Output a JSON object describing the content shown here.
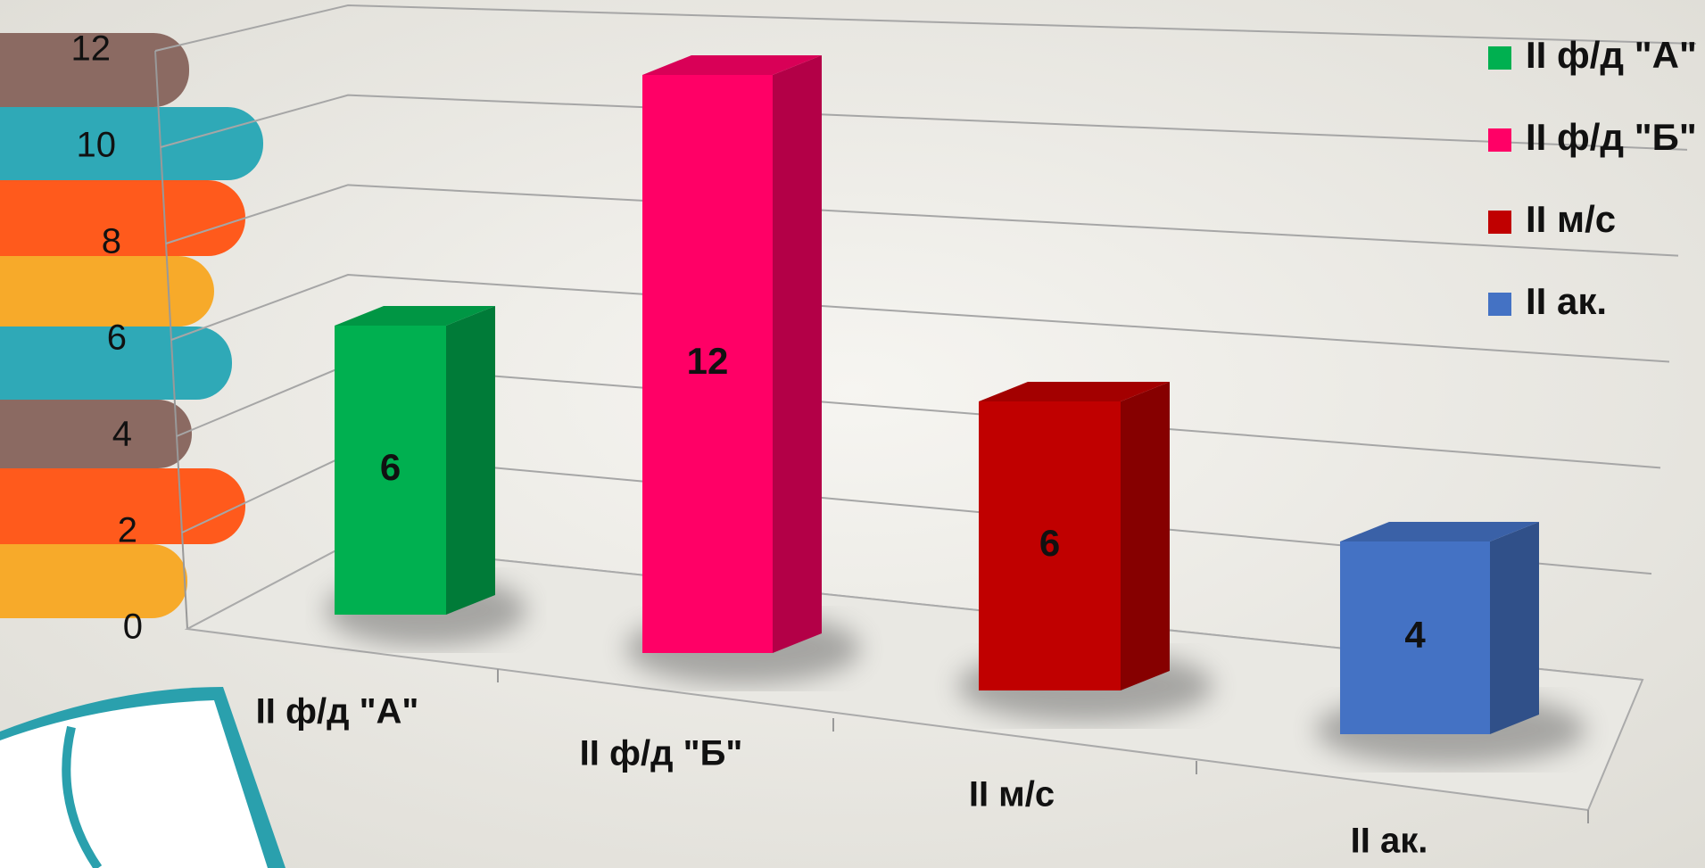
{
  "chart_data": {
    "type": "bar3d",
    "categories": [
      "II ф/д \"А\"",
      "II ф/д \"Б\"",
      "II м/с",
      "II ак."
    ],
    "values": [
      6,
      12,
      6,
      4
    ],
    "colors": [
      "#00b050",
      "#ff0066",
      "#c00000",
      "#4472c4"
    ],
    "ylim": [
      0,
      12
    ],
    "yticks": [
      0,
      2,
      4,
      6,
      8,
      10,
      12
    ],
    "grid": true,
    "legend": "right"
  }
}
